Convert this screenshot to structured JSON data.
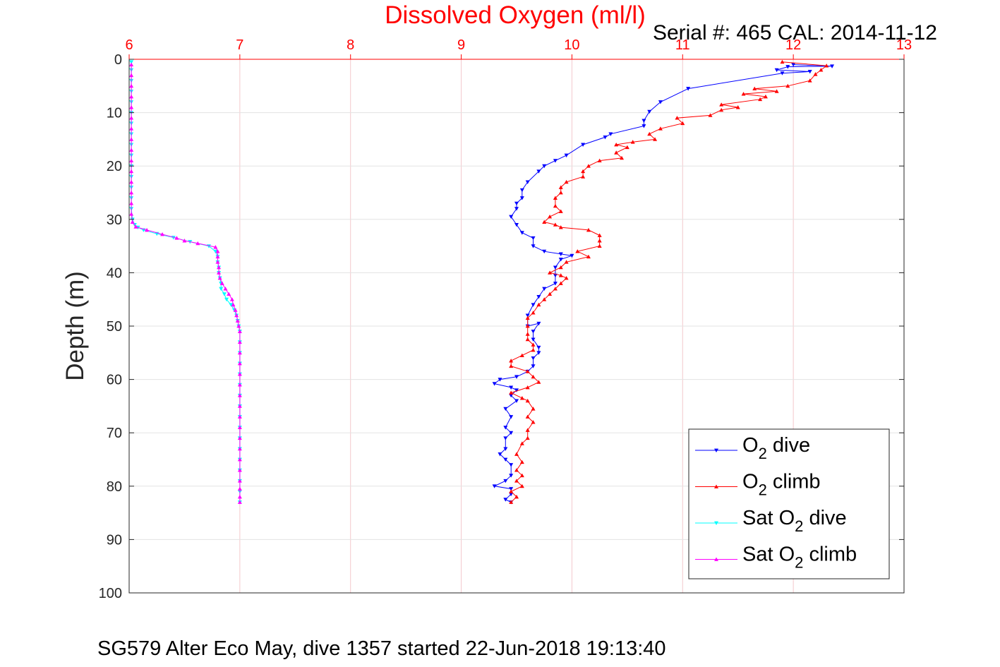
{
  "chart_data": {
    "type": "line",
    "title": "Dissolved Oxygen (ml/l)",
    "title_color": "#ff0000",
    "subtitle": "Serial #: 465  CAL: 2014-11-12",
    "footer": "SG579 Alter Eco May, dive 1357 started 22-Jun-2018 19:13:40",
    "ylabel": "Depth (m)",
    "xlim": [
      6,
      13
    ],
    "ylim": [
      0,
      100
    ],
    "y_reversed": true,
    "x_axis_position": "top",
    "x_ticks": [
      "6",
      "7",
      "8",
      "9",
      "10",
      "11",
      "12",
      "13"
    ],
    "y_ticks": [
      "0",
      "10",
      "20",
      "30",
      "40",
      "50",
      "60",
      "70",
      "80",
      "90",
      "100"
    ],
    "grid": true,
    "x_grid_color": "#ff0000",
    "legend_position": "bottom-right",
    "series": [
      {
        "name": "O2 dive",
        "label_main": "O",
        "label_sub": "2",
        "label_rest": " dive",
        "color": "#0000ff",
        "marker": "triangle-down",
        "points": [
          [
            12.0,
            1.0
          ],
          [
            12.35,
            1.3
          ],
          [
            11.95,
            1.4
          ],
          [
            11.85,
            2.0
          ],
          [
            12.15,
            2.3
          ],
          [
            11.9,
            2.6
          ],
          [
            11.05,
            5.5
          ],
          [
            10.8,
            8.0
          ],
          [
            10.7,
            9.8
          ],
          [
            10.65,
            11.5
          ],
          [
            10.65,
            12.5
          ],
          [
            10.35,
            14.0
          ],
          [
            10.3,
            14.6
          ],
          [
            10.1,
            16.0
          ],
          [
            9.95,
            18.0
          ],
          [
            9.85,
            19.0
          ],
          [
            9.75,
            20.0
          ],
          [
            9.7,
            21.0
          ],
          [
            9.6,
            23.0
          ],
          [
            9.55,
            24.5
          ],
          [
            9.55,
            26.0
          ],
          [
            9.5,
            27.0
          ],
          [
            9.5,
            28.0
          ],
          [
            9.45,
            29.5
          ],
          [
            9.5,
            31.0
          ],
          [
            9.55,
            32.5
          ],
          [
            9.65,
            33.5
          ],
          [
            9.65,
            35.0
          ],
          [
            9.75,
            36.0
          ],
          [
            9.9,
            36.5
          ],
          [
            10.0,
            36.8
          ],
          [
            9.9,
            37.5
          ],
          [
            9.85,
            39.0
          ],
          [
            9.85,
            40.5
          ],
          [
            9.85,
            42.0
          ],
          [
            9.75,
            43.0
          ],
          [
            9.7,
            44.5
          ],
          [
            9.65,
            46.0
          ],
          [
            9.6,
            48.0
          ],
          [
            9.6,
            50.0
          ],
          [
            9.7,
            49.5
          ],
          [
            9.65,
            51.0
          ],
          [
            9.65,
            52.5
          ],
          [
            9.7,
            54.0
          ],
          [
            9.7,
            55.0
          ],
          [
            9.65,
            56.0
          ],
          [
            9.65,
            57.5
          ],
          [
            9.6,
            58.5
          ],
          [
            9.5,
            59.5
          ],
          [
            9.35,
            60.0
          ],
          [
            9.3,
            60.8
          ],
          [
            9.45,
            61.5
          ],
          [
            9.5,
            62.0
          ],
          [
            9.45,
            63.0
          ],
          [
            9.5,
            64.0
          ],
          [
            9.4,
            65.5
          ],
          [
            9.45,
            67.0
          ],
          [
            9.4,
            69.0
          ],
          [
            9.45,
            70.0
          ],
          [
            9.4,
            71.0
          ],
          [
            9.4,
            73.0
          ],
          [
            9.35,
            74.0
          ],
          [
            9.4,
            75.0
          ],
          [
            9.45,
            76.0
          ],
          [
            9.45,
            78.0
          ],
          [
            9.4,
            79.0
          ],
          [
            9.3,
            80.0
          ],
          [
            9.45,
            80.5
          ],
          [
            9.45,
            81.5
          ],
          [
            9.4,
            82.5
          ],
          [
            9.45,
            83.0
          ]
        ]
      },
      {
        "name": "O2 climb",
        "label_main": "O",
        "label_sub": "2",
        "label_rest": " climb",
        "color": "#ff0000",
        "marker": "triangle-up",
        "points": [
          [
            9.45,
            83.0
          ],
          [
            9.5,
            82.0
          ],
          [
            9.45,
            81.0
          ],
          [
            9.55,
            80.0
          ],
          [
            9.5,
            79.0
          ],
          [
            9.55,
            78.0
          ],
          [
            9.5,
            77.0
          ],
          [
            9.55,
            75.5
          ],
          [
            9.5,
            74.0
          ],
          [
            9.55,
            72.0
          ],
          [
            9.6,
            71.0
          ],
          [
            9.6,
            69.5
          ],
          [
            9.65,
            68.0
          ],
          [
            9.6,
            67.0
          ],
          [
            9.65,
            65.5
          ],
          [
            9.6,
            64.0
          ],
          [
            9.55,
            63.5
          ],
          [
            9.45,
            62.5
          ],
          [
            9.6,
            61.5
          ],
          [
            9.7,
            60.5
          ],
          [
            9.65,
            59.5
          ],
          [
            9.6,
            58.5
          ],
          [
            9.45,
            57.5
          ],
          [
            9.45,
            56.5
          ],
          [
            9.55,
            55.5
          ],
          [
            9.65,
            54.5
          ],
          [
            9.65,
            53.5
          ],
          [
            9.6,
            52.5
          ],
          [
            9.6,
            51.5
          ],
          [
            9.6,
            50.0
          ],
          [
            9.6,
            48.5
          ],
          [
            9.65,
            47.5
          ],
          [
            9.7,
            46.0
          ],
          [
            9.75,
            45.0
          ],
          [
            9.8,
            44.0
          ],
          [
            9.85,
            43.0
          ],
          [
            9.9,
            42.0
          ],
          [
            9.95,
            41.0
          ],
          [
            9.9,
            40.5
          ],
          [
            9.8,
            40.0
          ],
          [
            9.9,
            39.0
          ],
          [
            9.95,
            38.0
          ],
          [
            10.15,
            37.0
          ],
          [
            10.05,
            36.0
          ],
          [
            10.25,
            35.0
          ],
          [
            10.25,
            34.0
          ],
          [
            10.25,
            33.0
          ],
          [
            10.15,
            32.0
          ],
          [
            9.9,
            31.5
          ],
          [
            9.85,
            31.0
          ],
          [
            9.75,
            30.5
          ],
          [
            9.8,
            29.5
          ],
          [
            9.9,
            28.5
          ],
          [
            9.85,
            27.5
          ],
          [
            9.85,
            26.0
          ],
          [
            9.9,
            25.0
          ],
          [
            9.9,
            24.0
          ],
          [
            9.95,
            23.0
          ],
          [
            10.1,
            22.0
          ],
          [
            10.1,
            21.0
          ],
          [
            10.15,
            20.0
          ],
          [
            10.25,
            19.0
          ],
          [
            10.45,
            18.5
          ],
          [
            10.4,
            17.5
          ],
          [
            10.5,
            16.5
          ],
          [
            10.4,
            16.0
          ],
          [
            10.55,
            15.5
          ],
          [
            10.75,
            15.0
          ],
          [
            10.7,
            14.0
          ],
          [
            10.8,
            13.0
          ],
          [
            11.0,
            12.0
          ],
          [
            10.95,
            11.0
          ],
          [
            11.25,
            10.5
          ],
          [
            11.35,
            9.5
          ],
          [
            11.5,
            9.0
          ],
          [
            11.35,
            8.5
          ],
          [
            11.7,
            7.5
          ],
          [
            11.75,
            7.0
          ],
          [
            11.55,
            6.5
          ],
          [
            11.85,
            6.0
          ],
          [
            11.65,
            5.5
          ],
          [
            11.95,
            5.0
          ],
          [
            12.15,
            4.0
          ],
          [
            12.2,
            2.8
          ],
          [
            12.25,
            2.0
          ],
          [
            12.3,
            1.2
          ],
          [
            11.9,
            0.5
          ]
        ]
      },
      {
        "name": "Sat O2 dive",
        "label_main": "Sat O",
        "label_sub": "2",
        "label_rest": " dive",
        "color": "#00ffff",
        "marker": "triangle-down",
        "points": [
          [
            6.02,
            0.5
          ],
          [
            6.02,
            2.0
          ],
          [
            6.02,
            4.0
          ],
          [
            6.02,
            6.0
          ],
          [
            6.02,
            8.0
          ],
          [
            6.02,
            10.0
          ],
          [
            6.02,
            12.0
          ],
          [
            6.02,
            14.0
          ],
          [
            6.02,
            16.0
          ],
          [
            6.02,
            18.0
          ],
          [
            6.02,
            20.0
          ],
          [
            6.02,
            22.0
          ],
          [
            6.02,
            24.0
          ],
          [
            6.02,
            26.0
          ],
          [
            6.02,
            28.0
          ],
          [
            6.03,
            30.0
          ],
          [
            6.05,
            31.0
          ],
          [
            6.08,
            31.5
          ],
          [
            6.13,
            32.0
          ],
          [
            6.25,
            32.7
          ],
          [
            6.4,
            33.4
          ],
          [
            6.55,
            34.2
          ],
          [
            6.72,
            35.0
          ],
          [
            6.78,
            36.0
          ],
          [
            6.8,
            37.0
          ],
          [
            6.8,
            38.0
          ],
          [
            6.81,
            39.0
          ],
          [
            6.81,
            40.0
          ],
          [
            6.82,
            41.0
          ],
          [
            6.83,
            42.0
          ],
          [
            6.83,
            43.0
          ],
          [
            6.86,
            44.0
          ],
          [
            6.88,
            45.0
          ],
          [
            6.92,
            46.0
          ],
          [
            6.95,
            47.0
          ],
          [
            6.97,
            48.0
          ],
          [
            6.98,
            49.0
          ],
          [
            6.99,
            50.0
          ],
          [
            7.0,
            51.0
          ],
          [
            7.0,
            53.0
          ],
          [
            7.0,
            55.0
          ],
          [
            7.0,
            57.0
          ],
          [
            7.0,
            59.0
          ],
          [
            7.0,
            61.0
          ],
          [
            7.0,
            63.0
          ],
          [
            7.0,
            65.0
          ],
          [
            7.0,
            67.0
          ],
          [
            7.0,
            69.0
          ],
          [
            7.0,
            71.0
          ],
          [
            7.0,
            73.0
          ],
          [
            7.0,
            75.0
          ],
          [
            7.0,
            77.0
          ],
          [
            7.0,
            79.0
          ],
          [
            7.0,
            81.0
          ],
          [
            7.0,
            83.0
          ]
        ]
      },
      {
        "name": "Sat O2 climb",
        "label_main": "Sat O",
        "label_sub": "2",
        "label_rest": " climb",
        "color": "#ff00ff",
        "marker": "triangle-up",
        "points": [
          [
            7.0,
            83.0
          ],
          [
            7.0,
            82.0
          ],
          [
            7.0,
            80.5
          ],
          [
            7.0,
            79.0
          ],
          [
            7.0,
            77.0
          ],
          [
            7.0,
            75.0
          ],
          [
            7.0,
            73.0
          ],
          [
            7.0,
            71.0
          ],
          [
            7.0,
            69.0
          ],
          [
            7.0,
            67.0
          ],
          [
            7.0,
            65.0
          ],
          [
            7.0,
            63.0
          ],
          [
            7.0,
            61.0
          ],
          [
            7.0,
            59.0
          ],
          [
            7.0,
            57.0
          ],
          [
            7.0,
            55.0
          ],
          [
            7.0,
            53.0
          ],
          [
            7.0,
            51.0
          ],
          [
            6.99,
            50.0
          ],
          [
            6.98,
            49.0
          ],
          [
            6.97,
            48.0
          ],
          [
            6.96,
            47.0
          ],
          [
            6.94,
            46.0
          ],
          [
            6.93,
            45.0
          ],
          [
            6.9,
            44.0
          ],
          [
            6.87,
            43.0
          ],
          [
            6.84,
            42.0
          ],
          [
            6.82,
            41.0
          ],
          [
            6.81,
            40.0
          ],
          [
            6.81,
            39.0
          ],
          [
            6.8,
            38.0
          ],
          [
            6.8,
            37.0
          ],
          [
            6.8,
            36.0
          ],
          [
            6.78,
            35.2
          ],
          [
            6.62,
            34.5
          ],
          [
            6.5,
            34.0
          ],
          [
            6.43,
            33.5
          ],
          [
            6.3,
            32.8
          ],
          [
            6.16,
            32.0
          ],
          [
            6.06,
            31.4
          ],
          [
            6.03,
            30.5
          ],
          [
            6.02,
            29.0
          ],
          [
            6.02,
            27.0
          ],
          [
            6.02,
            25.0
          ],
          [
            6.02,
            23.0
          ],
          [
            6.02,
            21.0
          ],
          [
            6.02,
            19.0
          ],
          [
            6.02,
            17.0
          ],
          [
            6.02,
            15.0
          ],
          [
            6.02,
            13.0
          ],
          [
            6.02,
            11.0
          ],
          [
            6.02,
            9.0
          ],
          [
            6.02,
            7.0
          ],
          [
            6.02,
            5.0
          ],
          [
            6.02,
            3.0
          ],
          [
            6.02,
            1.0
          ]
        ]
      }
    ]
  }
}
